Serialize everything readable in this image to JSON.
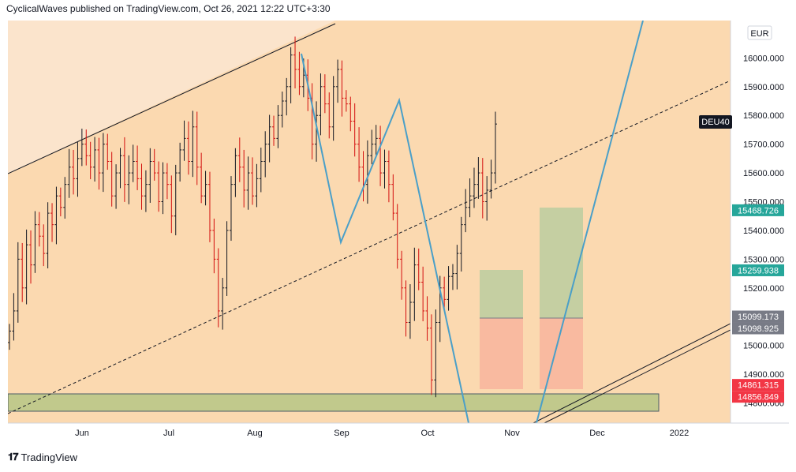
{
  "header": {
    "text": "CyclicalWaves published on TradingView.com, Oct 26, 2021 12:22 UTC+3:30"
  },
  "footer": {
    "logo_icon": "tradingview-logo-icon",
    "brand": "TradingView"
  },
  "colors": {
    "background": "#fbd9b0",
    "background_light": "#fbe4cc",
    "up_candle": "#131722",
    "down_candle": "#d30d0d",
    "wave_line": "#4a9fc8",
    "target_zone": "#c5cfa2",
    "stop_zone": "#f9baa0",
    "support_zone": "#c1c98c",
    "price_label_green": "#26a69a",
    "price_label_gray": "#787b86",
    "price_label_red": "#f23645"
  },
  "chart_data": {
    "type": "candlestick",
    "symbol": "DEU40",
    "currency": "EUR",
    "x_ticks": [
      "Jun",
      "Jul",
      "Aug",
      "Sep",
      "Oct",
      "Nov",
      "Dec",
      "2022"
    ],
    "y_ticks": [
      "16000.000",
      "15900.000",
      "15800.000",
      "15700.000",
      "15600.000",
      "15500.000",
      "15400.000",
      "15300.000",
      "15200.000",
      "15100.000",
      "15000.000",
      "14900.000",
      "14800.000"
    ],
    "ylim": [
      14730,
      16130
    ],
    "price_labels": [
      {
        "value": 15468.726,
        "text": "15468.726",
        "color": "green"
      },
      {
        "value": 15259.938,
        "text": "15259.938",
        "color": "green"
      },
      {
        "value": 15099.173,
        "text": "15099.173",
        "color": "gray"
      },
      {
        "value": 15098.925,
        "text": "15098.925",
        "color": "gray"
      },
      {
        "value": 14861.315,
        "text": "14861.315",
        "color": "red"
      },
      {
        "value": 14856.849,
        "text": "14856.849",
        "color": "red"
      }
    ],
    "candles_close": [
      15050,
      15120,
      15300,
      15200,
      15350,
      15280,
      15420,
      15380,
      15320,
      15460,
      15420,
      15520,
      15480,
      15560,
      15620,
      15580,
      15650,
      15700,
      15660,
      15620,
      15680,
      15600,
      15700,
      15640,
      15520,
      15600,
      15660,
      15560,
      15600,
      15640,
      15580,
      15520,
      15560,
      15640,
      15600,
      15500,
      15600,
      15560,
      15450,
      15600,
      15680,
      15720,
      15640,
      15760,
      15620,
      15520,
      15560,
      15400,
      15300,
      15120,
      15200,
      15400,
      15560,
      15660,
      15620,
      15540,
      15600,
      15520,
      15580,
      15640,
      15700,
      15760,
      15720,
      15800,
      15850,
      15900,
      16010,
      15960,
      15900,
      15940,
      15860,
      15700,
      15800,
      15900,
      15840,
      15760,
      15900,
      15960,
      15860,
      15840,
      15780,
      15700,
      15620,
      15560,
      15660,
      15700,
      15720,
      15600,
      15640,
      15560,
      15460,
      15300,
      15200,
      15080,
      15150,
      15280,
      15220,
      15120,
      15060,
      14880,
      15080,
      15200,
      15160,
      15240,
      15250,
      15320,
      15420,
      15480,
      15520,
      15560,
      15600,
      15500,
      15540,
      15600,
      15770
    ]
  }
}
